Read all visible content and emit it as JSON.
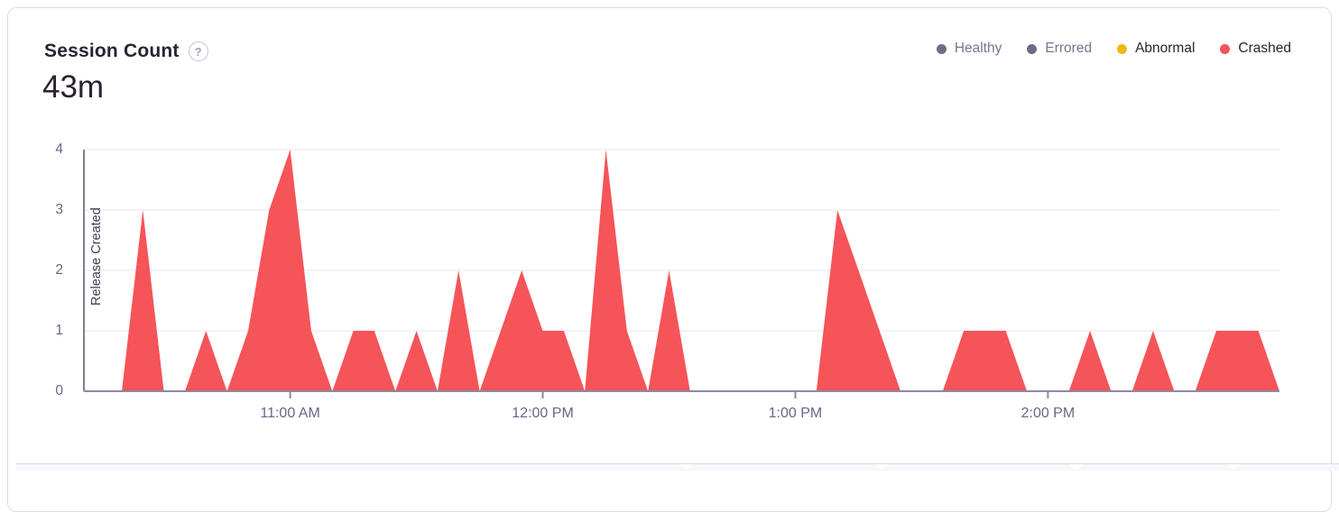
{
  "panel": {
    "title": "Session Count",
    "help_icon": "?",
    "value": "43m"
  },
  "legend": {
    "items": [
      {
        "label": "Healthy",
        "color": "#756A85",
        "muted": true
      },
      {
        "label": "Errored",
        "color": "#756A85",
        "muted": true
      },
      {
        "label": "Abnormal",
        "color": "#F2B712",
        "muted": false
      },
      {
        "label": "Crashed",
        "color": "#F55459",
        "muted": false
      }
    ]
  },
  "chart_data": {
    "type": "area",
    "title": "Session Count",
    "total": "43m",
    "ylabel": "",
    "xlabel": "",
    "ylim": [
      0,
      4
    ],
    "yticks": [
      "0",
      "1",
      "2",
      "3",
      "4"
    ],
    "xticks": [
      "11:00 AM",
      "12:00 PM",
      "1:00 PM",
      "2:00 PM"
    ],
    "x_domain": [
      "10:11 AM",
      "2:55 PM"
    ],
    "grid": "horizontal",
    "legend_position": "top-right",
    "annotations": [
      {
        "type": "vertical-line",
        "label": "Release Created",
        "position": "left-edge"
      }
    ],
    "series": [
      {
        "name": "Crashed",
        "color": "#F55459",
        "points": [
          [
            "10:15 AM",
            0
          ],
          [
            "10:20 AM",
            0
          ],
          [
            "10:25 AM",
            3
          ],
          [
            "10:30 AM",
            0
          ],
          [
            "10:35 AM",
            0
          ],
          [
            "10:40 AM",
            1
          ],
          [
            "10:45 AM",
            0
          ],
          [
            "10:50 AM",
            1
          ],
          [
            "10:55 AM",
            3
          ],
          [
            "11:00 AM",
            4
          ],
          [
            "11:05 AM",
            1
          ],
          [
            "11:10 AM",
            0
          ],
          [
            "11:15 AM",
            1
          ],
          [
            "11:20 AM",
            1
          ],
          [
            "11:25 AM",
            0
          ],
          [
            "11:30 AM",
            1
          ],
          [
            "11:35 AM",
            0
          ],
          [
            "11:40 AM",
            2
          ],
          [
            "11:45 AM",
            0
          ],
          [
            "11:50 AM",
            1
          ],
          [
            "11:55 AM",
            2
          ],
          [
            "12:00 PM",
            1
          ],
          [
            "12:05 PM",
            1
          ],
          [
            "12:10 PM",
            0
          ],
          [
            "12:15 PM",
            4
          ],
          [
            "12:20 PM",
            1
          ],
          [
            "12:25 PM",
            0
          ],
          [
            "12:30 PM",
            2
          ],
          [
            "12:35 PM",
            0
          ],
          [
            "12:40 PM",
            0
          ],
          [
            "12:45 PM",
            0
          ],
          [
            "12:50 PM",
            0
          ],
          [
            "12:55 PM",
            0
          ],
          [
            "1:00 PM",
            0
          ],
          [
            "1:05 PM",
            0
          ],
          [
            "1:10 PM",
            3
          ],
          [
            "1:15 PM",
            2
          ],
          [
            "1:20 PM",
            1
          ],
          [
            "1:25 PM",
            0
          ],
          [
            "1:30 PM",
            0
          ],
          [
            "1:35 PM",
            0
          ],
          [
            "1:40 PM",
            1
          ],
          [
            "1:45 PM",
            1
          ],
          [
            "1:50 PM",
            1
          ],
          [
            "1:55 PM",
            0
          ],
          [
            "2:00 PM",
            0
          ],
          [
            "2:05 PM",
            0
          ],
          [
            "2:10 PM",
            1
          ],
          [
            "2:15 PM",
            0
          ],
          [
            "2:20 PM",
            0
          ],
          [
            "2:25 PM",
            1
          ],
          [
            "2:30 PM",
            0
          ],
          [
            "2:35 PM",
            0
          ],
          [
            "2:40 PM",
            1
          ],
          [
            "2:45 PM",
            1
          ],
          [
            "2:50 PM",
            1
          ],
          [
            "2:55 PM",
            0
          ]
        ]
      }
    ]
  }
}
